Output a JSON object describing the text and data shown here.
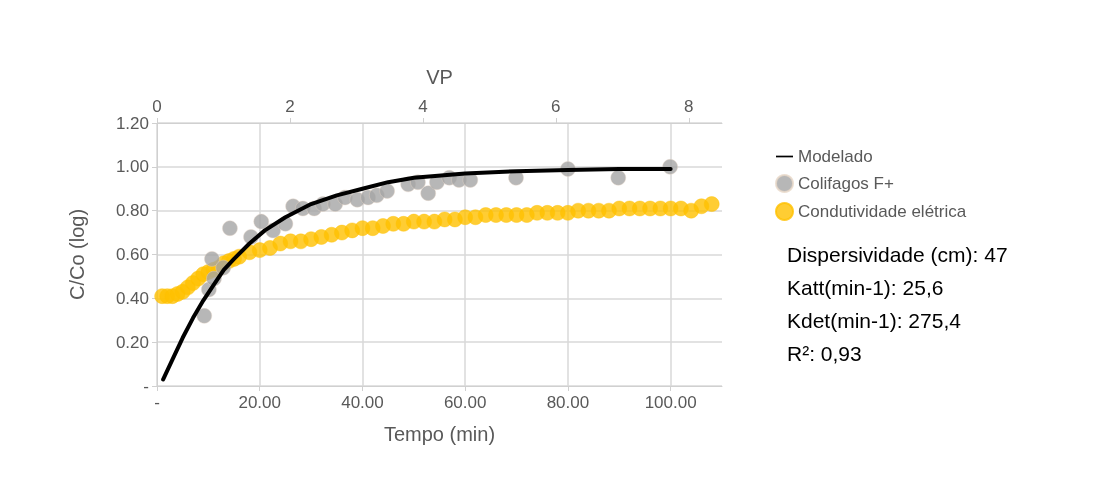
{
  "chart_data": {
    "type": "scatter",
    "xlabel": "Tempo (min)",
    "ylabel": "C/Co (log)",
    "x2label": "VP",
    "xlim": [
      0,
      110
    ],
    "xticks": [
      {
        "value": 0,
        "label": "-"
      },
      {
        "value": 20,
        "label": "20.00"
      },
      {
        "value": 40,
        "label": "40.00"
      },
      {
        "value": 60,
        "label": "60.00"
      },
      {
        "value": 80,
        "label": "80.00"
      },
      {
        "value": 100,
        "label": "100.00"
      }
    ],
    "ylim": [
      0,
      1.2
    ],
    "yticks": [
      {
        "value": 0,
        "label": "-"
      },
      {
        "value": 0.2,
        "label": "0.20"
      },
      {
        "value": 0.4,
        "label": "0.40"
      },
      {
        "value": 0.6,
        "label": "0.60"
      },
      {
        "value": 0.8,
        "label": "0.80"
      },
      {
        "value": 1.0,
        "label": "1.00"
      },
      {
        "value": 1.2,
        "label": "1.20"
      }
    ],
    "x2lim": [
      0,
      8.5
    ],
    "x2ticks": [
      0,
      2,
      4,
      6,
      8
    ],
    "grid": true,
    "legend": "right",
    "series": [
      {
        "name": "Modelado",
        "type": "line",
        "marker": "none",
        "line_style": "solid",
        "color": "#000000",
        "x": [
          1.2,
          3,
          5,
          7,
          9,
          11,
          13,
          15,
          18,
          21,
          25,
          30,
          35,
          40,
          45,
          50,
          60,
          70,
          80,
          90,
          100
        ],
        "values": [
          0.03,
          0.12,
          0.22,
          0.31,
          0.39,
          0.46,
          0.53,
          0.58,
          0.65,
          0.71,
          0.77,
          0.83,
          0.87,
          0.9,
          0.93,
          0.95,
          0.97,
          0.98,
          0.985,
          0.99,
          0.99
        ]
      },
      {
        "name": "Colifagos F+",
        "marker": "circle",
        "color": "#a5a5a5",
        "x": [
          9.2,
          10.1,
          10.7,
          11.1,
          12.9,
          14.2,
          18.3,
          20.3,
          22.6,
          25.0,
          26.5,
          28.4,
          30.6,
          32.3,
          34.7,
          36.6,
          39.0,
          41.1,
          42.8,
          44.8,
          48.9,
          50.8,
          52.8,
          54.5,
          56.9,
          58.8,
          61.0,
          69.9,
          80.0,
          89.8,
          99.9
        ],
        "values": [
          0.32,
          0.44,
          0.58,
          0.49,
          0.54,
          0.72,
          0.68,
          0.75,
          0.71,
          0.74,
          0.82,
          0.81,
          0.81,
          0.83,
          0.83,
          0.86,
          0.85,
          0.86,
          0.87,
          0.89,
          0.92,
          0.93,
          0.88,
          0.93,
          0.95,
          0.94,
          0.94,
          0.95,
          0.99,
          0.95,
          1.0
        ]
      },
      {
        "name": "Condutividade elétrica",
        "marker": "circle",
        "color": "#ffc000",
        "x": [
          1,
          2,
          3,
          4,
          5,
          6,
          7,
          8,
          9,
          10,
          11,
          12,
          13,
          14,
          15,
          16,
          18,
          20,
          22,
          24,
          26,
          28,
          30,
          32,
          34,
          36,
          38,
          40,
          42,
          44,
          46,
          48,
          50,
          52,
          54,
          56,
          58,
          60,
          62,
          64,
          66,
          68,
          70,
          72,
          74,
          76,
          78,
          80,
          82,
          84,
          86,
          88,
          90,
          92,
          94,
          96,
          98,
          100,
          102,
          104,
          106,
          108
        ],
        "values": [
          0.41,
          0.41,
          0.41,
          0.42,
          0.43,
          0.45,
          0.47,
          0.49,
          0.51,
          0.52,
          0.53,
          0.54,
          0.56,
          0.57,
          0.58,
          0.59,
          0.61,
          0.62,
          0.63,
          0.65,
          0.66,
          0.66,
          0.67,
          0.68,
          0.69,
          0.7,
          0.71,
          0.72,
          0.72,
          0.73,
          0.74,
          0.74,
          0.75,
          0.75,
          0.75,
          0.76,
          0.76,
          0.77,
          0.77,
          0.78,
          0.78,
          0.78,
          0.78,
          0.78,
          0.79,
          0.79,
          0.79,
          0.79,
          0.8,
          0.8,
          0.8,
          0.8,
          0.81,
          0.81,
          0.81,
          0.81,
          0.81,
          0.81,
          0.81,
          0.8,
          0.82,
          0.83
        ]
      }
    ],
    "annotations": [
      "Dispersividade (cm): 47",
      "Katt(min-1): 25,6",
      "Kdet(min-1): 275,4",
      "R²: 0,93"
    ]
  }
}
